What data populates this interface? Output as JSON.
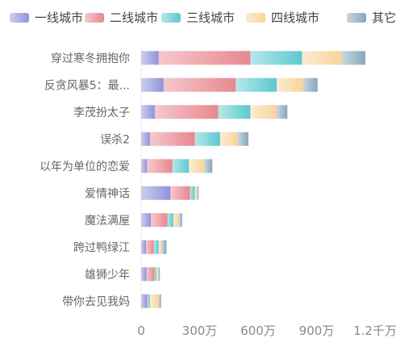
{
  "chart_data": {
    "type": "bar",
    "orientation": "horizontal",
    "stacked": true,
    "categories": [
      "穿过寒冬拥抱你",
      "反贪风暴5：最...",
      "李茂扮太子",
      "误杀2",
      "以年为单位的恋爱",
      "爱情神话",
      "魔法满屋",
      "跨过鸭绿江",
      "雄狮少年",
      "带你去见我妈"
    ],
    "series": [
      {
        "name": "一线城市",
        "color": "#8f93d9",
        "values": [
          90,
          115,
          70,
          45,
          30,
          150,
          50,
          25,
          28,
          30
        ]
      },
      {
        "name": "二线城市",
        "color": "#e8878f",
        "values": [
          470,
          370,
          325,
          230,
          130,
          100,
          85,
          40,
          40,
          5
        ]
      },
      {
        "name": "三线城市",
        "color": "#5cc9cf",
        "values": [
          265,
          210,
          165,
          130,
          85,
          25,
          30,
          25,
          10,
          10
        ]
      },
      {
        "name": "四线城市",
        "color": "#f7d49a",
        "values": [
          205,
          135,
          135,
          90,
          80,
          12,
          30,
          15,
          10,
          45
        ]
      },
      {
        "name": "其它",
        "color": "#86a7ba",
        "values": [
          120,
          75,
          55,
          55,
          40,
          8,
          15,
          25,
          8,
          12
        ]
      }
    ],
    "xaxis": {
      "min": 0,
      "max": 1200,
      "ticks": [
        0,
        300,
        600,
        900,
        1200
      ],
      "tick_labels": [
        "0",
        "300万",
        "600万",
        "900万",
        "1.2千万"
      ]
    },
    "legend": {
      "position": "top"
    },
    "grid": false
  }
}
